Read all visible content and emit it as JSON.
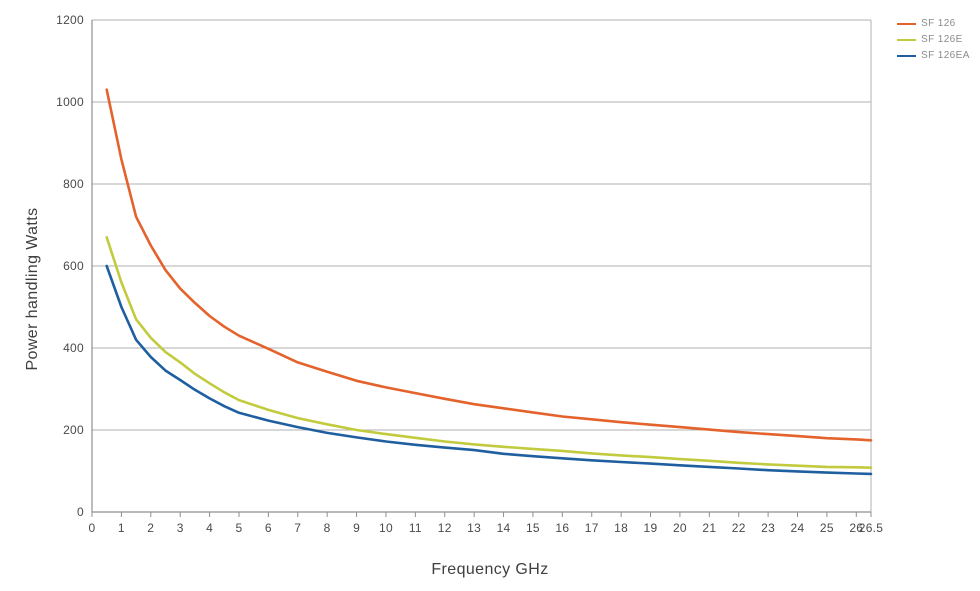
{
  "chart_data": {
    "type": "line",
    "title": "",
    "xlabel": "Frequency GHz",
    "ylabel": "Power handling Watts",
    "xlim": [
      0,
      26.5
    ],
    "ylim": [
      0,
      1200
    ],
    "grid": "horizontal",
    "legend_position": "top-right",
    "x_ticks": [
      0,
      1,
      2,
      3,
      4,
      5,
      6,
      7,
      8,
      9,
      10,
      11,
      12,
      13,
      14,
      15,
      16,
      17,
      18,
      19,
      20,
      21,
      22,
      23,
      24,
      25,
      26,
      26.5
    ],
    "x_tick_labels": [
      "0",
      "1",
      "2",
      "3",
      "4",
      "5",
      "6",
      "7",
      "8",
      "9",
      "10",
      "11",
      "12",
      "13",
      "14",
      "15",
      "16",
      "17",
      "18",
      "19",
      "20",
      "21",
      "22",
      "23",
      "24",
      "25",
      "26",
      "26.5"
    ],
    "y_ticks": [
      0,
      200,
      400,
      600,
      800,
      1000,
      1200
    ],
    "y_tick_labels": [
      "0",
      "200",
      "400",
      "600",
      "800",
      "1000",
      "1200"
    ],
    "x": [
      0.5,
      1,
      1.5,
      2,
      2.5,
      3,
      3.5,
      4,
      4.5,
      5,
      6,
      7,
      8,
      9,
      10,
      11,
      12,
      13,
      14,
      15,
      16,
      17,
      18,
      19,
      20,
      21,
      22,
      23,
      24,
      25,
      26,
      26.5
    ],
    "series": [
      {
        "name": "SF 126",
        "color": "#E4622B",
        "values": [
          1030,
          860,
          720,
          650,
          590,
          545,
          510,
          478,
          452,
          430,
          398,
          365,
          342,
          320,
          304,
          290,
          276,
          263,
          253,
          243,
          233,
          226,
          219,
          213,
          207,
          201,
          195,
          190,
          185,
          180,
          177,
          175
        ]
      },
      {
        "name": "SF 126E",
        "color": "#C1CB3D",
        "values": [
          670,
          560,
          470,
          425,
          390,
          365,
          337,
          314,
          292,
          273,
          249,
          229,
          214,
          200,
          190,
          181,
          172,
          165,
          159,
          154,
          149,
          143,
          138,
          134,
          129,
          125,
          120,
          116,
          113,
          110,
          109,
          108
        ]
      },
      {
        "name": "SF 126EA",
        "color": "#1F5FA0",
        "values": [
          600,
          500,
          420,
          378,
          345,
          322,
          298,
          277,
          258,
          242,
          223,
          207,
          193,
          182,
          172,
          164,
          157,
          151,
          142,
          136,
          131,
          126,
          122,
          118,
          114,
          110,
          106,
          102,
          99,
          96,
          94,
          93
        ]
      }
    ]
  },
  "colors": {
    "background": "#ffffff",
    "axis": "#8f8f8f",
    "gridline": "#b0b0b0",
    "tick_text": "#4a4a4a",
    "axis_title_text": "#3f3f3f",
    "legend_text": "#8c8c8c"
  }
}
